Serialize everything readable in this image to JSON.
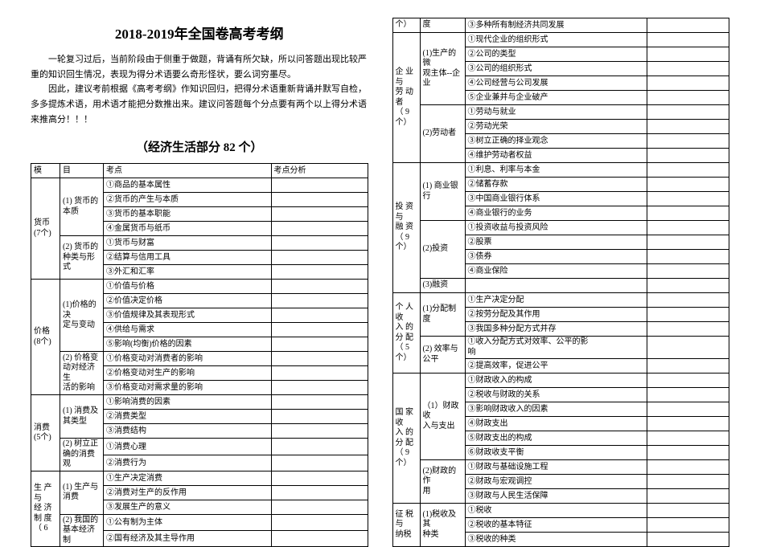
{
  "title": "2018-2019年全国卷高考考纲",
  "intro": {
    "p1": "一轮复习过后，当前阶段由于侧重于做题，背诵有所欠缺，所以问答题出现比较严重的知识回生情况，表现为得分术语要么奇形怪状，要么词穷墨尽。",
    "p2": "因此，建议考前根据《高考考纲》作知识回归，把得分术语重新背诵并默写自检，多多提炼术语，用术语才能把分数推出来。建议问答题每个分点要有两个以上得分术语来推高分！！！"
  },
  "subtitle": "（经济生活部分 82 个）",
  "left": {
    "headers": {
      "mod": "模",
      "topic": "目",
      "point": "考点",
      "analysis": "考点分析"
    },
    "modules": [
      {
        "mod": "货币\n(7个)",
        "topics": [
          {
            "topic": "(1) 货币的\n本质",
            "points": [
              "①商品的基本属性",
              "②货币的产生与本质",
              "③货币的基本职能",
              "④金属货币与纸币"
            ]
          },
          {
            "topic": "(2) 货币的\n种类与形式",
            "points": [
              "①货币与财富",
              "②结算与信用工具",
              "③外汇和汇率"
            ]
          }
        ]
      },
      {
        "mod": "价格\n(8个)",
        "topics": [
          {
            "topic": "(1)价格的决\n定与变动",
            "points": [
              "①价值与价格",
              "②价值决定价格",
              "③价值规律及其表现形式",
              "④供给与需求",
              "⑤影响(均衡)价格的因素"
            ]
          },
          {
            "topic": "(2) 价格变\n动对经济生\n活的影响",
            "points": [
              "①价格变动对消费者的影响",
              "②价格变动对生产的影响",
              "③价格变动对需求量的影响"
            ]
          }
        ]
      },
      {
        "mod": "消费\n(5个)",
        "topics": [
          {
            "topic": "(1) 消费及\n其类型",
            "points": [
              "①影响消费的因素",
              "②消费类型",
              "③消费结构"
            ]
          },
          {
            "topic": "(2) 树立正\n确的消费观",
            "points": [
              "①消费心理",
              "②消费行为"
            ]
          }
        ]
      },
      {
        "mod": "生 产\n与\n经 济\n制 度\n（  6",
        "topics": [
          {
            "topic": "(1) 生产与\n消费",
            "points": [
              "①生产决定消费",
              "②消费对生产的反作用",
              "③发展生产的意义"
            ]
          },
          {
            "topic": "(2) 我国的\n基本经济制",
            "points": [
              "①公有制为主体",
              "②国有经济及其主导作用"
            ]
          }
        ]
      }
    ]
  },
  "right": {
    "modules": [
      {
        "mod": "个）",
        "topics": [
          {
            "topic": "度",
            "points": [
              "③多种所有制经济共同发展"
            ]
          }
        ]
      },
      {
        "mod": "企 业\n与\n劳 动\n者\n（ 9\n个）",
        "topics": [
          {
            "topic": "(1)生产的微\n观主体--企\n业",
            "points": [
              "①现代企业的组织形式",
              "②公司的类型",
              "③公司的组织形式",
              "④公司经营与公司发展",
              "⑤企业兼并与企业破产"
            ]
          },
          {
            "topic": "(2)劳动者",
            "points": [
              "①劳动与就业",
              "②劳动光荣",
              "③树立正确的择业观念",
              "④维护劳动者权益"
            ]
          }
        ]
      },
      {
        "mod": "投 资\n与\n融 资\n（ 9\n个）",
        "topics": [
          {
            "topic": "(1) 商业银\n行",
            "points": [
              "①利息、利率与本金",
              "②储蓄存款",
              "③中国商业银行体系",
              "④商业银行的业务"
            ]
          },
          {
            "topic": "(2)投资",
            "points": [
              "①投资收益与投资风险",
              "②股票",
              "③债券",
              "④商业保险"
            ]
          },
          {
            "topic": "(3)融资",
            "points": [
              ""
            ]
          }
        ]
      },
      {
        "mod": "个 人\n收\n入 的\n分 配\n（ 5\n个）",
        "topics": [
          {
            "topic": "(1)分配制度",
            "points": [
              "①生产决定分配",
              "②按劳分配及其作用",
              "③我国多种分配方式并存"
            ]
          },
          {
            "topic": "(2) 效率与\n公平",
            "points": [
              "①收入分配方式对效率、公平的影\n响",
              "②提高效率，促进公平"
            ]
          }
        ]
      },
      {
        "mod": "国 家\n收\n入 的\n分 配\n（ 9\n个）",
        "topics": [
          {
            "topic": "（1）财政收\n入与支出",
            "points": [
              "①财政收入的构成",
              "②税收与财政的关系",
              "③影响财政收入的因素",
              "④财政支出",
              "⑤财政支出的构成",
              "⑥财政收支平衡"
            ]
          },
          {
            "topic": "(2)财政的作\n用",
            "points": [
              "①财政与基础设施工程",
              "②财政与宏观调控",
              "③财政与人民生活保障"
            ]
          }
        ]
      },
      {
        "mod": "征 税\n与\n纳税",
        "topics": [
          {
            "topic": "(1)税收及其\n种类",
            "points": [
              "①税收",
              "②税收的基本特征",
              "③税收的种类"
            ]
          }
        ]
      }
    ]
  }
}
